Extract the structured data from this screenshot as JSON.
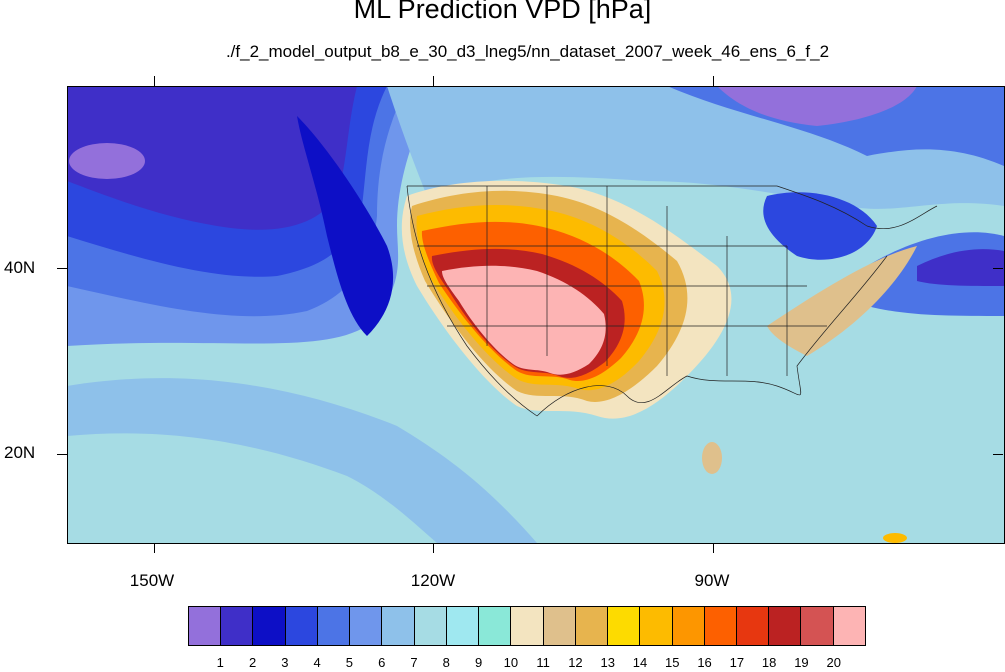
{
  "title": "ML Prediction VPD [hPa]",
  "subtitle": "./f_2_model_output_b8_e_30_d3_lneg5/nn_dataset_2007_week_46_ens_6_f_2",
  "lon_labels": [
    "150W",
    "120W",
    "90W"
  ],
  "lat_labels": [
    "40N",
    "20N"
  ],
  "colorbar": {
    "labels": [
      "1",
      "2",
      "3",
      "4",
      "5",
      "6",
      "7",
      "8",
      "9",
      "10",
      "11",
      "12",
      "13",
      "14",
      "15",
      "16",
      "17",
      "18",
      "19",
      "20"
    ],
    "colors": [
      "#9370db",
      "#3f2fc8",
      "#0d0fc6",
      "#2c47df",
      "#4c74e6",
      "#6f96ec",
      "#8ec1ea",
      "#a6dce4",
      "#9fe8f0",
      "#8ae8d8",
      "#f3e4c0",
      "#dfc08c",
      "#e7b44e",
      "#fddb00",
      "#fdbb00",
      "#fd9600",
      "#fd6000",
      "#e73710",
      "#bb2222",
      "#d45353",
      "#fdb4b4"
    ]
  },
  "chart_data": {
    "type": "heatmap",
    "title": "ML Prediction VPD [hPa]",
    "subtitle": "./f_2_model_output_b8_e_30_d3_lneg5/nn_dataset_2007_week_46_ens_6_f_2",
    "variable": "VPD",
    "units": "hPa",
    "x_ticks": [
      "150W",
      "120W",
      "90W"
    ],
    "y_ticks": [
      "40N",
      "20N"
    ],
    "color_levels": [
      1,
      2,
      3,
      4,
      5,
      6,
      7,
      8,
      9,
      10,
      11,
      12,
      13,
      14,
      15,
      16,
      17,
      18,
      19,
      20
    ],
    "highest_values_region": "US Southwest and southern Great Plains",
    "lowest_values_region": "northeast Pacific Ocean"
  }
}
